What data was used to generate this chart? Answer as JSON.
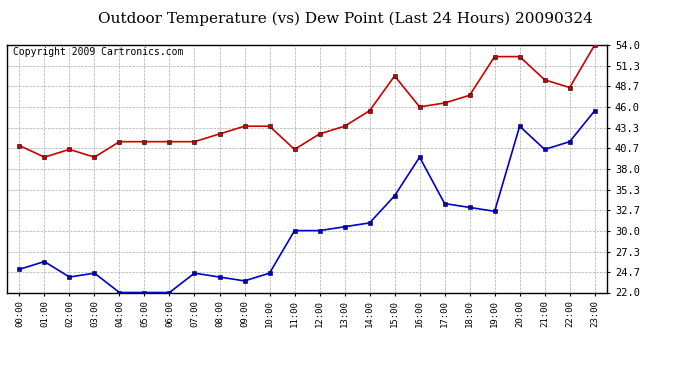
{
  "title": "Outdoor Temperature (vs) Dew Point (Last 24 Hours) 20090324",
  "copyright": "Copyright 2009 Cartronics.com",
  "hours": [
    "00:00",
    "01:00",
    "02:00",
    "03:00",
    "04:00",
    "05:00",
    "06:00",
    "07:00",
    "08:00",
    "09:00",
    "10:00",
    "11:00",
    "12:00",
    "13:00",
    "14:00",
    "15:00",
    "16:00",
    "17:00",
    "18:00",
    "19:00",
    "20:00",
    "21:00",
    "22:00",
    "23:00"
  ],
  "temp": [
    41.0,
    39.5,
    40.5,
    39.5,
    41.5,
    41.5,
    41.5,
    41.5,
    42.5,
    43.5,
    43.5,
    40.5,
    42.5,
    43.5,
    45.5,
    50.0,
    46.0,
    46.5,
    47.5,
    52.5,
    52.5,
    49.5,
    48.5,
    54.0
  ],
  "dew": [
    25.0,
    26.0,
    24.0,
    24.5,
    22.0,
    22.0,
    22.0,
    24.5,
    24.0,
    23.5,
    24.5,
    30.0,
    30.0,
    30.5,
    31.0,
    34.5,
    39.5,
    33.5,
    33.0,
    32.5,
    43.5,
    40.5,
    41.5,
    45.5
  ],
  "temp_color": "#cc0000",
  "dew_color": "#0000cc",
  "bg_color": "#ffffff",
  "grid_color": "#aaaaaa",
  "title_fontsize": 11,
  "copyright_fontsize": 7,
  "yticks": [
    22.0,
    24.7,
    27.3,
    30.0,
    32.7,
    35.3,
    38.0,
    40.7,
    43.3,
    46.0,
    48.7,
    51.3,
    54.0
  ],
  "ylim": [
    22.0,
    54.0
  ],
  "marker": "s",
  "marker_size": 3,
  "linewidth": 1.2
}
